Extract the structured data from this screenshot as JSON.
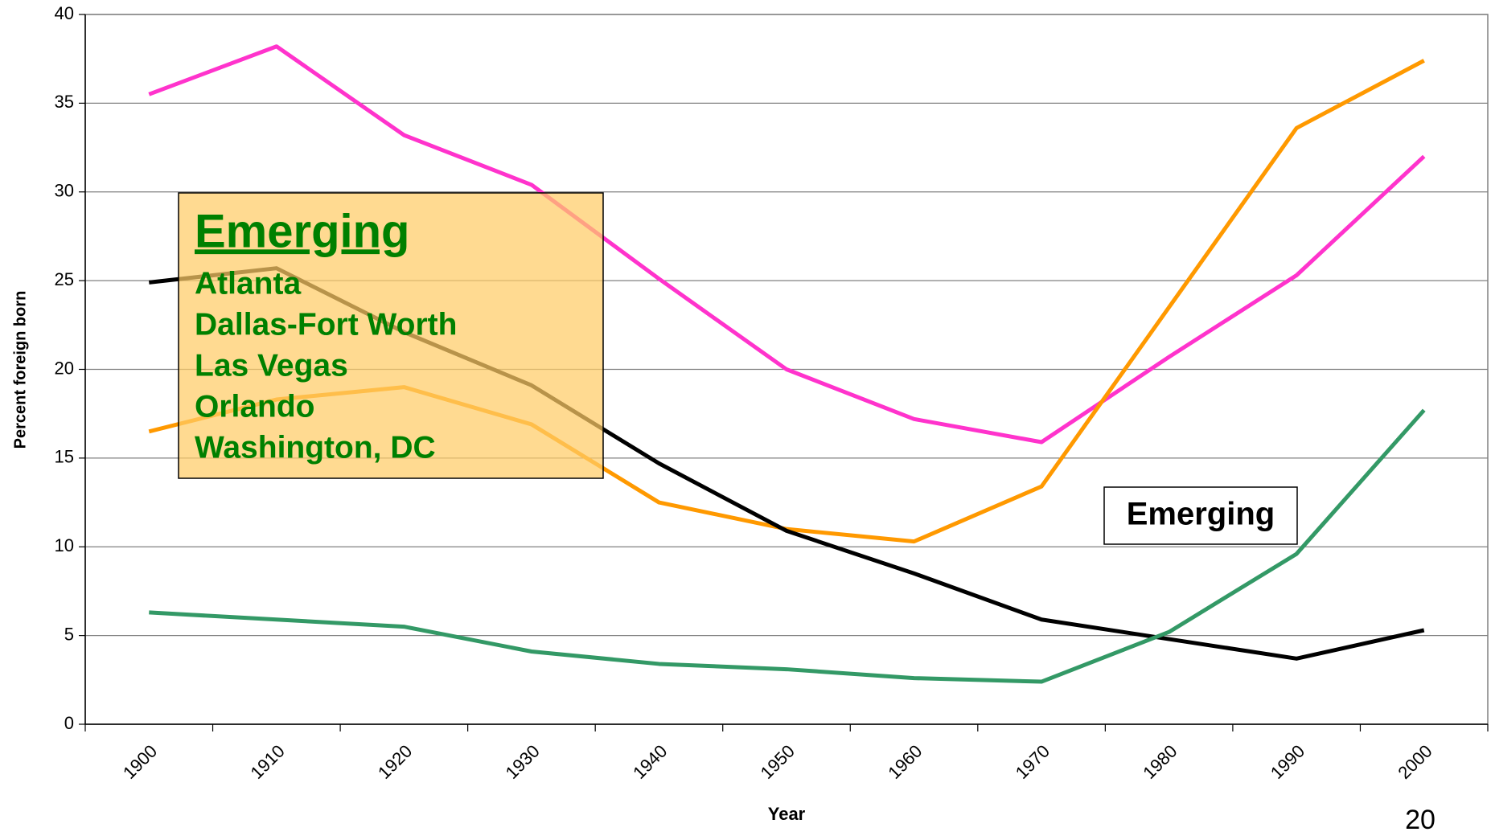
{
  "chart_data": {
    "type": "line",
    "x_label": "Year",
    "y_label": "Percent foreign born",
    "categories": [
      "1900",
      "1910",
      "1920",
      "1930",
      "1940",
      "1950",
      "1960",
      "1970",
      "1980",
      "1990",
      "2000"
    ],
    "series": [
      {
        "color": "#ff33cc",
        "values": [
          35.5,
          38.2,
          33.2,
          30.4,
          25.1,
          20.0,
          17.2,
          15.9,
          20.7,
          25.3,
          32.0
        ]
      },
      {
        "color": "#ff9900",
        "values": [
          16.5,
          18.3,
          19.0,
          16.9,
          12.5,
          11.0,
          10.3,
          13.4,
          23.5,
          33.6,
          37.4
        ]
      },
      {
        "color": "#000000",
        "values": [
          24.9,
          25.7,
          22.1,
          19.1,
          14.7,
          10.9,
          8.5,
          5.9,
          4.8,
          3.7,
          5.3
        ]
      },
      {
        "color": "#339966",
        "values": [
          6.3,
          5.9,
          5.5,
          4.1,
          3.4,
          3.1,
          2.6,
          2.4,
          5.2,
          9.6,
          17.7
        ]
      }
    ],
    "ylim": [
      0,
      40
    ],
    "yticks": [
      0,
      5,
      10,
      15,
      20,
      25,
      30,
      35,
      40
    ],
    "grid": true,
    "annotations": [
      {
        "title": "Emerging",
        "lines": [
          "Atlanta",
          "Dallas-Fort Worth",
          "Las Vegas",
          "Orlando",
          "Washington, DC"
        ]
      },
      {
        "text": "Emerging"
      }
    ]
  },
  "page_number": "20"
}
